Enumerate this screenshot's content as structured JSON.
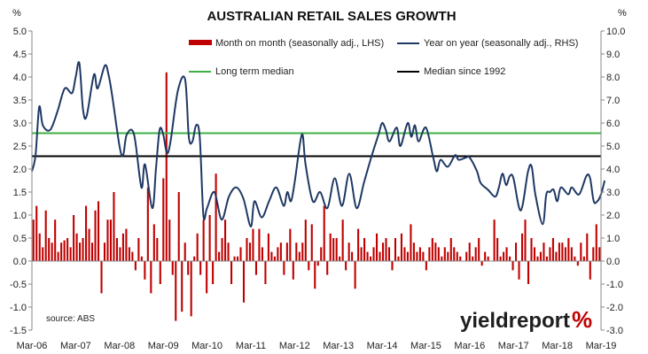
{
  "chart_data": {
    "type": "bar+line",
    "title": "AUSTRALIAN RETAIL SALES GROWTH",
    "left_unit": "%",
    "right_unit": "%",
    "source": "source: ABS",
    "brand": "yieldreport",
    "brand_symbol": "%",
    "ylim_left": [
      -1.5,
      5.0
    ],
    "ylim_right": [
      -3.0,
      10.0
    ],
    "yticks_left": [
      "-1.5",
      "-1.0",
      "-0.5",
      "0.0",
      "0.5",
      "1.0",
      "1.5",
      "2.0",
      "2.5",
      "3.0",
      "3.5",
      "4.0",
      "4.5",
      "5.0"
    ],
    "yticks_right": [
      "-3.0",
      "-2.0",
      "-1.0",
      "0.0",
      "1.0",
      "2.0",
      "3.0",
      "4.0",
      "5.0",
      "6.0",
      "7.0",
      "8.0",
      "9.0",
      "10.0"
    ],
    "x_start": "2006-03",
    "x_end": "2019-03",
    "x_tick_labels": [
      "Mar-06",
      "Mar-07",
      "Mar-08",
      "Mar-09",
      "Mar-10",
      "Mar-11",
      "Mar-12",
      "Mar-13",
      "Mar-14",
      "Mar-15",
      "Mar-16",
      "Mar-17",
      "Mar-18",
      "Mar-19"
    ],
    "grid": false,
    "legend_position": "top",
    "colors": {
      "bars": "#c00000",
      "yoy_line": "#1f3864",
      "long_term_median": "#3cb043",
      "median_since_1992": "#000000"
    },
    "legend": {
      "mom": "Month on month (seasonally adj., LHS)",
      "yoy": "Year on year (seasonally adj., RHS)",
      "ltm": "Long term median",
      "m92": "Median since 1992"
    },
    "long_term_median_lhs": 2.78,
    "median_since_1992_lhs": 2.28,
    "monthly_change_lhs": [
      0.9,
      1.2,
      0.6,
      0.3,
      1.1,
      0.5,
      0.4,
      0.9,
      0.2,
      0.4,
      0.45,
      0.5,
      0.3,
      1.0,
      0.6,
      0.4,
      0.5,
      1.2,
      0.7,
      0.4,
      1.1,
      1.3,
      -0.7,
      0.4,
      0.9,
      0.9,
      1.5,
      0.5,
      0.3,
      0.6,
      0.7,
      0.3,
      0.2,
      -0.2,
      0.5,
      0.1,
      -0.4,
      1.6,
      -0.7,
      0.8,
      0.5,
      -0.5,
      1.8,
      4.1,
      0.9,
      -0.3,
      -1.3,
      1.5,
      -1.1,
      0.4,
      -0.3,
      -1.2,
      0.1,
      0.6,
      -0.3,
      0.9,
      -0.7,
      1.0,
      -0.5,
      1.9,
      0.2,
      0.5,
      0.9,
      0.4,
      -0.5,
      0.1,
      0.1,
      0.3,
      -0.9,
      0.5,
      0.4,
      0.7,
      -0.3,
      0.7,
      0.3,
      -0.5,
      0.6,
      0.2,
      0.1,
      0.3,
      0.4,
      -0.3,
      0.4,
      0.7,
      -0.4,
      0.4,
      0.2,
      0.4,
      0.9,
      -0.2,
      0.8,
      -0.6,
      -0.1,
      0.3,
      1.2,
      -0.3,
      0.6,
      0.5,
      0.5,
      0.1,
      0.9,
      -0.2,
      0.4,
      0.2,
      -0.6,
      0.7,
      0.3,
      0.5,
      0.2,
      0.1,
      0.3,
      0.6,
      0.2,
      0.4,
      0.5,
      0.3,
      -0.2,
      0.5,
      0.1,
      0.6,
      0.3,
      0.2,
      0.8,
      0.4,
      0.2,
      0.3,
      0.2,
      -0.2,
      0.3,
      0.5,
      0.4,
      0.3,
      0.1,
      0.3,
      0.2,
      0.5,
      0.3,
      0.2,
      0.1,
      0.0,
      0.2,
      0.4,
      0.1,
      0.3,
      0.5,
      -0.1,
      0.2,
      0.1,
      0.0,
      0.9,
      0.5,
      0.1,
      0.2,
      0.3,
      0.1,
      -0.2,
      0.4,
      -0.4,
      0.6,
      0.9,
      -0.5,
      0.5,
      0.3,
      0.1,
      0.2,
      0.4,
      0.1,
      0.3,
      0.5,
      0.2,
      0.4,
      0.4,
      0.3,
      0.5,
      0.3,
      0.1,
      -0.1,
      0.4,
      0.1,
      0.6,
      -0.4,
      0.3,
      0.8,
      0.3
    ],
    "yoy_points_rhs": [
      [
        "2006-03",
        3.9
      ],
      [
        "2006-04",
        4.6
      ],
      [
        "2006-05",
        6.7
      ],
      [
        "2006-06",
        5.9
      ],
      [
        "2006-08",
        5.7
      ],
      [
        "2006-10",
        6.5
      ],
      [
        "2006-12",
        7.5
      ],
      [
        "2007-02",
        7.3
      ],
      [
        "2007-03",
        8.0
      ],
      [
        "2007-04",
        8.6
      ],
      [
        "2007-05",
        6.6
      ],
      [
        "2007-06",
        6.3
      ],
      [
        "2007-08",
        8.1
      ],
      [
        "2007-09",
        7.5
      ],
      [
        "2007-11",
        8.5
      ],
      [
        "2007-12",
        8.1
      ],
      [
        "2008-01",
        7.2
      ],
      [
        "2008-03",
        5.0
      ],
      [
        "2008-04",
        4.6
      ],
      [
        "2008-05",
        5.5
      ],
      [
        "2008-07",
        5.5
      ],
      [
        "2008-09",
        3.2
      ],
      [
        "2008-10",
        4.2
      ],
      [
        "2008-12",
        2.3
      ],
      [
        "2009-01",
        4.0
      ],
      [
        "2009-02",
        5.7
      ],
      [
        "2009-03",
        5.5
      ],
      [
        "2009-04",
        4.7
      ],
      [
        "2009-05",
        5.2
      ],
      [
        "2009-07",
        7.4
      ],
      [
        "2009-09",
        7.9
      ],
      [
        "2009-10",
        5.4
      ],
      [
        "2009-11",
        5.2
      ],
      [
        "2009-12",
        5.9
      ],
      [
        "2010-01",
        5.4
      ],
      [
        "2010-02",
        2.0
      ],
      [
        "2010-03",
        2.3
      ],
      [
        "2010-05",
        3.0
      ],
      [
        "2010-07",
        1.8
      ],
      [
        "2010-09",
        2.8
      ],
      [
        "2010-11",
        3.2
      ],
      [
        "2011-01",
        2.7
      ],
      [
        "2011-03",
        1.5
      ],
      [
        "2011-04",
        2.6
      ],
      [
        "2011-06",
        1.9
      ],
      [
        "2011-08",
        2.6
      ],
      [
        "2011-10",
        3.2
      ],
      [
        "2011-12",
        2.4
      ],
      [
        "2012-01",
        3.0
      ],
      [
        "2012-02",
        2.6
      ],
      [
        "2012-03",
        3.4
      ],
      [
        "2012-05",
        5.5
      ],
      [
        "2012-06",
        4.2
      ],
      [
        "2012-08",
        2.6
      ],
      [
        "2012-10",
        3.0
      ],
      [
        "2012-12",
        2.3
      ],
      [
        "2013-02",
        3.6
      ],
      [
        "2013-04",
        2.4
      ],
      [
        "2013-06",
        3.8
      ],
      [
        "2013-08",
        2.3
      ],
      [
        "2013-10",
        3.4
      ],
      [
        "2013-12",
        4.5
      ],
      [
        "2014-02",
        5.5
      ],
      [
        "2014-03",
        6.0
      ],
      [
        "2014-04",
        5.7
      ],
      [
        "2014-05",
        5.2
      ],
      [
        "2014-07",
        5.8
      ],
      [
        "2014-08",
        5.0
      ],
      [
        "2014-10",
        6.0
      ],
      [
        "2014-11",
        5.4
      ],
      [
        "2014-12",
        5.9
      ],
      [
        "2015-01",
        5.2
      ],
      [
        "2015-03",
        5.8
      ],
      [
        "2015-05",
        4.5
      ],
      [
        "2015-06",
        3.9
      ],
      [
        "2015-07",
        4.4
      ],
      [
        "2015-09",
        4.1
      ],
      [
        "2015-11",
        4.6
      ],
      [
        "2015-12",
        4.4
      ],
      [
        "2016-02",
        4.5
      ],
      [
        "2016-03",
        4.5
      ],
      [
        "2016-05",
        3.9
      ],
      [
        "2016-06",
        3.4
      ],
      [
        "2016-08",
        3.1
      ],
      [
        "2016-10",
        2.8
      ],
      [
        "2016-11",
        3.2
      ],
      [
        "2016-12",
        3.8
      ],
      [
        "2017-01",
        3.3
      ],
      [
        "2017-02",
        3.7
      ],
      [
        "2017-03",
        3.6
      ],
      [
        "2017-05",
        2.2
      ],
      [
        "2017-07",
        3.9
      ],
      [
        "2017-08",
        4.1
      ],
      [
        "2017-09",
        2.9
      ],
      [
        "2017-11",
        1.6
      ],
      [
        "2017-12",
        2.9
      ],
      [
        "2018-01",
        3.0
      ],
      [
        "2018-02",
        3.1
      ],
      [
        "2018-03",
        2.6
      ],
      [
        "2018-04",
        3.2
      ],
      [
        "2018-06",
        2.9
      ],
      [
        "2018-07",
        3.2
      ],
      [
        "2018-09",
        2.9
      ],
      [
        "2018-11",
        3.7
      ],
      [
        "2018-12",
        3.6
      ],
      [
        "2019-01",
        2.6
      ],
      [
        "2019-02",
        2.6
      ],
      [
        "2019-03",
        2.9
      ],
      [
        "2019-04",
        3.5
      ]
    ]
  }
}
